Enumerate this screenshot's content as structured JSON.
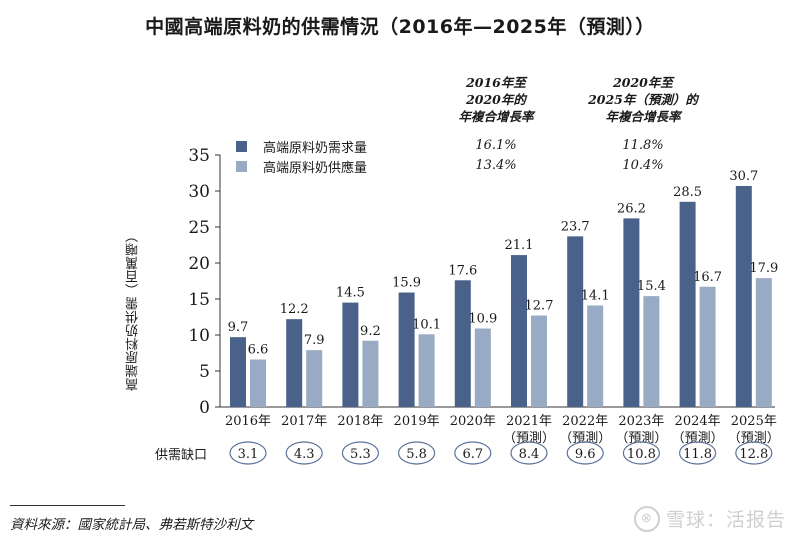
{
  "chart_data": {
    "type": "bar",
    "title": "中國高端原料奶的供需情況（2016年—2025年（預測））",
    "xlabel": "",
    "ylabel": "高端原料奶供需（百萬噸）",
    "ylim": [
      0,
      35
    ],
    "yticks": [
      "0",
      "5",
      "10",
      "15",
      "20",
      "25",
      "30",
      "35"
    ],
    "categories": [
      "2016年",
      "2017年",
      "2018年",
      "2019年",
      "2020年",
      "2021年",
      "2022年",
      "2023年",
      "2024年",
      "2025年"
    ],
    "category_sublabels": [
      "",
      "",
      "",
      "",
      "",
      "（預測）",
      "（預測）",
      "（預測）",
      "（預測）",
      "（預測）"
    ],
    "series": [
      {
        "name": "高端原料奶需求量",
        "color": "#4a6289",
        "values": [
          9.7,
          12.2,
          14.5,
          15.9,
          17.6,
          21.1,
          23.7,
          26.2,
          28.5,
          30.7
        ]
      },
      {
        "name": "高端原料奶供應量",
        "color": "#98aac4",
        "values": [
          6.6,
          7.9,
          9.2,
          10.1,
          10.9,
          12.7,
          14.1,
          15.4,
          16.7,
          17.9
        ]
      }
    ],
    "supply_gap": {
      "label": "供需缺口",
      "values": [
        "3.1",
        "4.3",
        "5.3",
        "5.8",
        "6.7",
        "8.4",
        "9.6",
        "10.8",
        "11.8",
        "12.8"
      ]
    },
    "cagr_table": {
      "headers": [
        [
          "2016年至",
          "2020年的",
          "年複合增長率"
        ],
        [
          "2020年至",
          "2025年（預測）的",
          "年複合增長率"
        ]
      ],
      "rows": [
        {
          "series": "高端原料奶需求量",
          "values": [
            "16.1%",
            "11.8%"
          ]
        },
        {
          "series": "高端原料奶供應量",
          "values": [
            "13.4%",
            "10.4%"
          ]
        }
      ]
    },
    "legend": "top-left",
    "grid": false
  },
  "source": "資料來源：國家統計局、弗若斯特沙利文",
  "watermark": {
    "logo": "⊗",
    "text": "雪球：活报告"
  }
}
